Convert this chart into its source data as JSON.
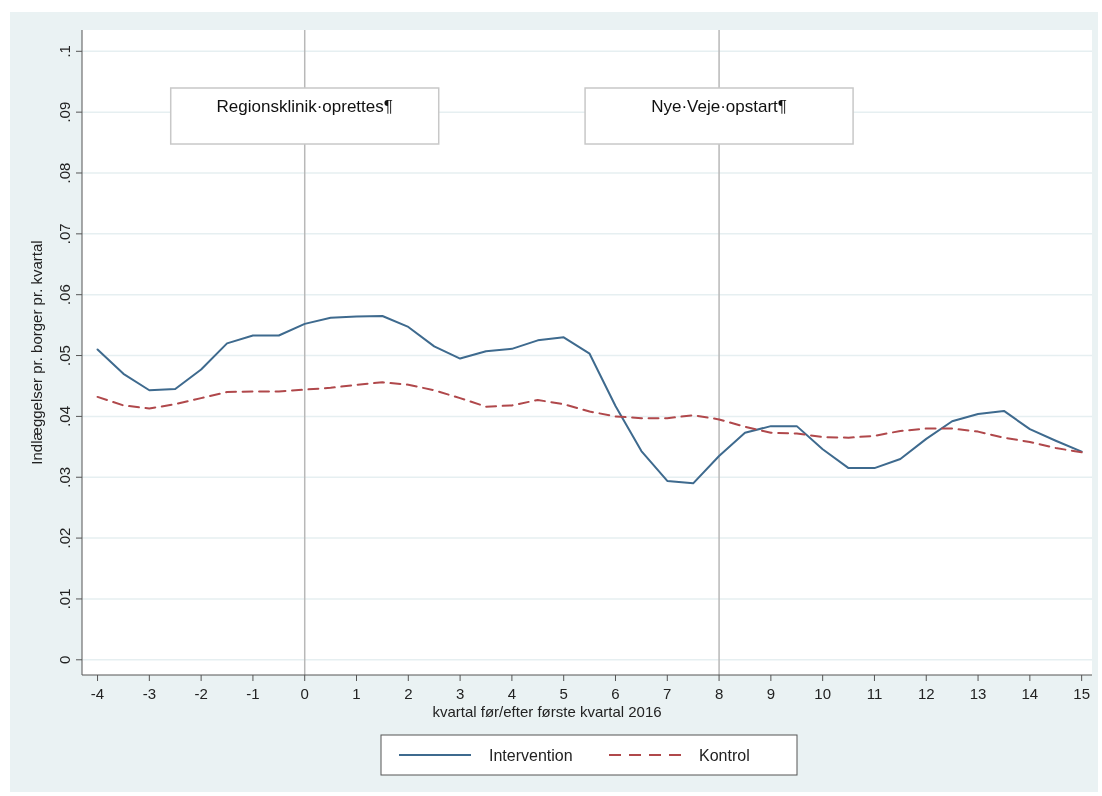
{
  "chart_data": {
    "type": "line",
    "xlabel": "kvartal før/efter første kvartal 2016",
    "ylabel": "Indlæggelser pr. borger pr. kvartal",
    "x": [
      -4,
      -3.5,
      -3,
      -2.5,
      -2,
      -1.5,
      -1,
      -0.5,
      0,
      0.5,
      1,
      1.5,
      2,
      2.5,
      3,
      3.5,
      4,
      4.5,
      5,
      5.5,
      6,
      6.5,
      7,
      7.5,
      8,
      8.5,
      9,
      9.5,
      10,
      10.5,
      11,
      11.5,
      12,
      12.5,
      13,
      13.5,
      14,
      14.5,
      15
    ],
    "series": [
      {
        "name": "Intervention",
        "color": "#3e6a8e",
        "line_style": "solid",
        "values": [
          0.051,
          0.047,
          0.0443,
          0.0445,
          0.0477,
          0.052,
          0.0533,
          0.0533,
          0.0552,
          0.0562,
          0.0564,
          0.0565,
          0.0547,
          0.0515,
          0.0495,
          0.0507,
          0.0511,
          0.0525,
          0.053,
          0.0503,
          0.0417,
          0.0343,
          0.0294,
          0.029,
          0.0335,
          0.0373,
          0.0384,
          0.0384,
          0.0346,
          0.0315,
          0.0315,
          0.033,
          0.0363,
          0.0392,
          0.0404,
          0.0409,
          0.0379,
          0.036,
          0.0342
        ]
      },
      {
        "name": "Kontrol",
        "color": "#b0484b",
        "line_style": "dashed",
        "values": [
          0.0432,
          0.0418,
          0.0413,
          0.042,
          0.043,
          0.044,
          0.0441,
          0.0441,
          0.0444,
          0.0447,
          0.0452,
          0.0456,
          0.0452,
          0.0443,
          0.043,
          0.0416,
          0.0418,
          0.0427,
          0.042,
          0.0408,
          0.04,
          0.0397,
          0.0397,
          0.0402,
          0.0395,
          0.0383,
          0.0373,
          0.0372,
          0.0366,
          0.0365,
          0.0368,
          0.0376,
          0.038,
          0.038,
          0.0375,
          0.0365,
          0.0358,
          0.0348,
          0.0341
        ]
      }
    ],
    "xlim": [
      -4.3,
      15.2
    ],
    "xticks": [
      -4,
      -3,
      -2,
      -1,
      0,
      1,
      2,
      3,
      4,
      5,
      6,
      7,
      8,
      9,
      10,
      11,
      12,
      13,
      14,
      15
    ],
    "ylim": [
      -0.0025,
      0.1035
    ],
    "yticks": [
      0,
      {
        "value": 0.01,
        "label": ".01"
      },
      {
        "value": 0.02,
        "label": ".02"
      },
      {
        "value": 0.03,
        "label": ".03"
      },
      {
        "value": 0.04,
        "label": ".04"
      },
      {
        "value": 0.05,
        "label": ".05"
      },
      {
        "value": 0.06,
        "label": ".06"
      },
      {
        "value": 0.07,
        "label": ".07"
      },
      {
        "value": 0.08,
        "label": ".08"
      },
      {
        "value": 0.09,
        "label": ".09"
      },
      {
        "value": 0.1,
        "label": ".1"
      }
    ],
    "ref_lines": [
      {
        "axis": "x",
        "value": 0,
        "label": "Regionsklinik·oprettes¶",
        "color": "#b8b8b8"
      },
      {
        "axis": "x",
        "value": 8,
        "label": "Nye·Veje·opstart¶",
        "color": "#b8b8b8"
      }
    ],
    "grid": "y",
    "legend": "bottom"
  }
}
